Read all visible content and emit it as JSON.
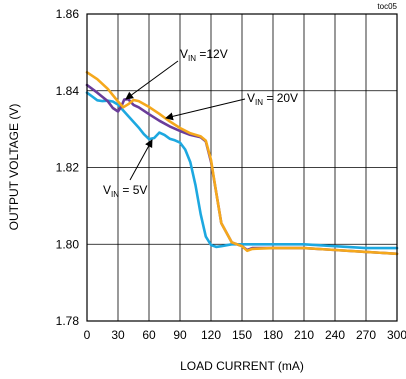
{
  "chart_data": {
    "type": "line",
    "figure_id": "toc05",
    "xlabel": "LOAD CURRENT (mA)",
    "ylabel": "OUTPUT VOLTAGE (V)",
    "xlim": [
      0,
      300
    ],
    "ylim": [
      1.78,
      1.86
    ],
    "x_ticks": [
      "0",
      "30",
      "60",
      "90",
      "120",
      "150",
      "180",
      "210",
      "240",
      "270",
      "300"
    ],
    "y_ticks": [
      "1.78",
      "1.80",
      "1.82",
      "1.84",
      "1.86"
    ],
    "grid": true,
    "series": [
      {
        "name": "VIN = 5V",
        "color": "#1da8e0",
        "x": [
          0,
          5,
          10,
          15,
          20,
          25,
          30,
          40,
          50,
          55,
          60,
          65,
          70,
          75,
          80,
          85,
          90,
          95,
          100,
          105,
          110,
          115,
          120,
          125,
          130,
          140,
          150,
          160,
          180,
          210,
          240,
          270,
          300
        ],
        "y": [
          1.8395,
          1.8385,
          1.8375,
          1.8373,
          1.8374,
          1.8372,
          1.8364,
          1.8334,
          1.8304,
          1.8287,
          1.8274,
          1.8277,
          1.8291,
          1.8285,
          1.8275,
          1.8271,
          1.8265,
          1.8247,
          1.8214,
          1.8154,
          1.8078,
          1.802,
          1.7998,
          1.7993,
          1.7995,
          1.8,
          1.8,
          1.8,
          1.8,
          1.8,
          1.7995,
          1.799,
          1.799
        ]
      },
      {
        "name": "VIN = 12V",
        "color": "#6a3d9a",
        "x": [
          0,
          10,
          20,
          25,
          30,
          33,
          36,
          40,
          45,
          50,
          60,
          70,
          80,
          90,
          100,
          110,
          115,
          120,
          125,
          130,
          140,
          150,
          155,
          160,
          180,
          210,
          240,
          270,
          300
        ],
        "y": [
          1.8415,
          1.8395,
          1.8373,
          1.8355,
          1.8346,
          1.8358,
          1.8377,
          1.8378,
          1.8363,
          1.8357,
          1.8339,
          1.8322,
          1.8307,
          1.8295,
          1.8285,
          1.8279,
          1.8268,
          1.8215,
          1.8135,
          1.8055,
          1.8005,
          1.7995,
          1.7985,
          1.799,
          1.799,
          1.799,
          1.7985,
          1.798,
          1.7975
        ]
      },
      {
        "name": "VIN = 20V",
        "color": "#f5a81c",
        "x": [
          0,
          10,
          20,
          30,
          35,
          40,
          45,
          50,
          60,
          70,
          80,
          90,
          100,
          110,
          115,
          120,
          125,
          130,
          140,
          150,
          155,
          160,
          180,
          210,
          240,
          270,
          300
        ],
        "y": [
          1.8448,
          1.843,
          1.8405,
          1.8372,
          1.8357,
          1.8365,
          1.8376,
          1.8373,
          1.8358,
          1.834,
          1.832,
          1.8303,
          1.8289,
          1.8281,
          1.827,
          1.822,
          1.8135,
          1.8055,
          1.8005,
          1.7995,
          1.7983,
          1.7988,
          1.799,
          1.799,
          1.7985,
          1.798,
          1.7975
        ]
      }
    ],
    "annotations": [
      {
        "text_main": "V",
        "text_sub": "IN",
        "text_rest": " =12V",
        "target_x": 42,
        "target_y": 1.8385
      },
      {
        "text_main": "V",
        "text_sub": "IN",
        "text_rest": " = 20V",
        "target_x": 45,
        "target_y": 1.8325
      },
      {
        "text_main": "V",
        "text_sub": "IN",
        "text_rest": " = 5V",
        "target_x": 68,
        "target_y": 1.8275
      }
    ]
  }
}
